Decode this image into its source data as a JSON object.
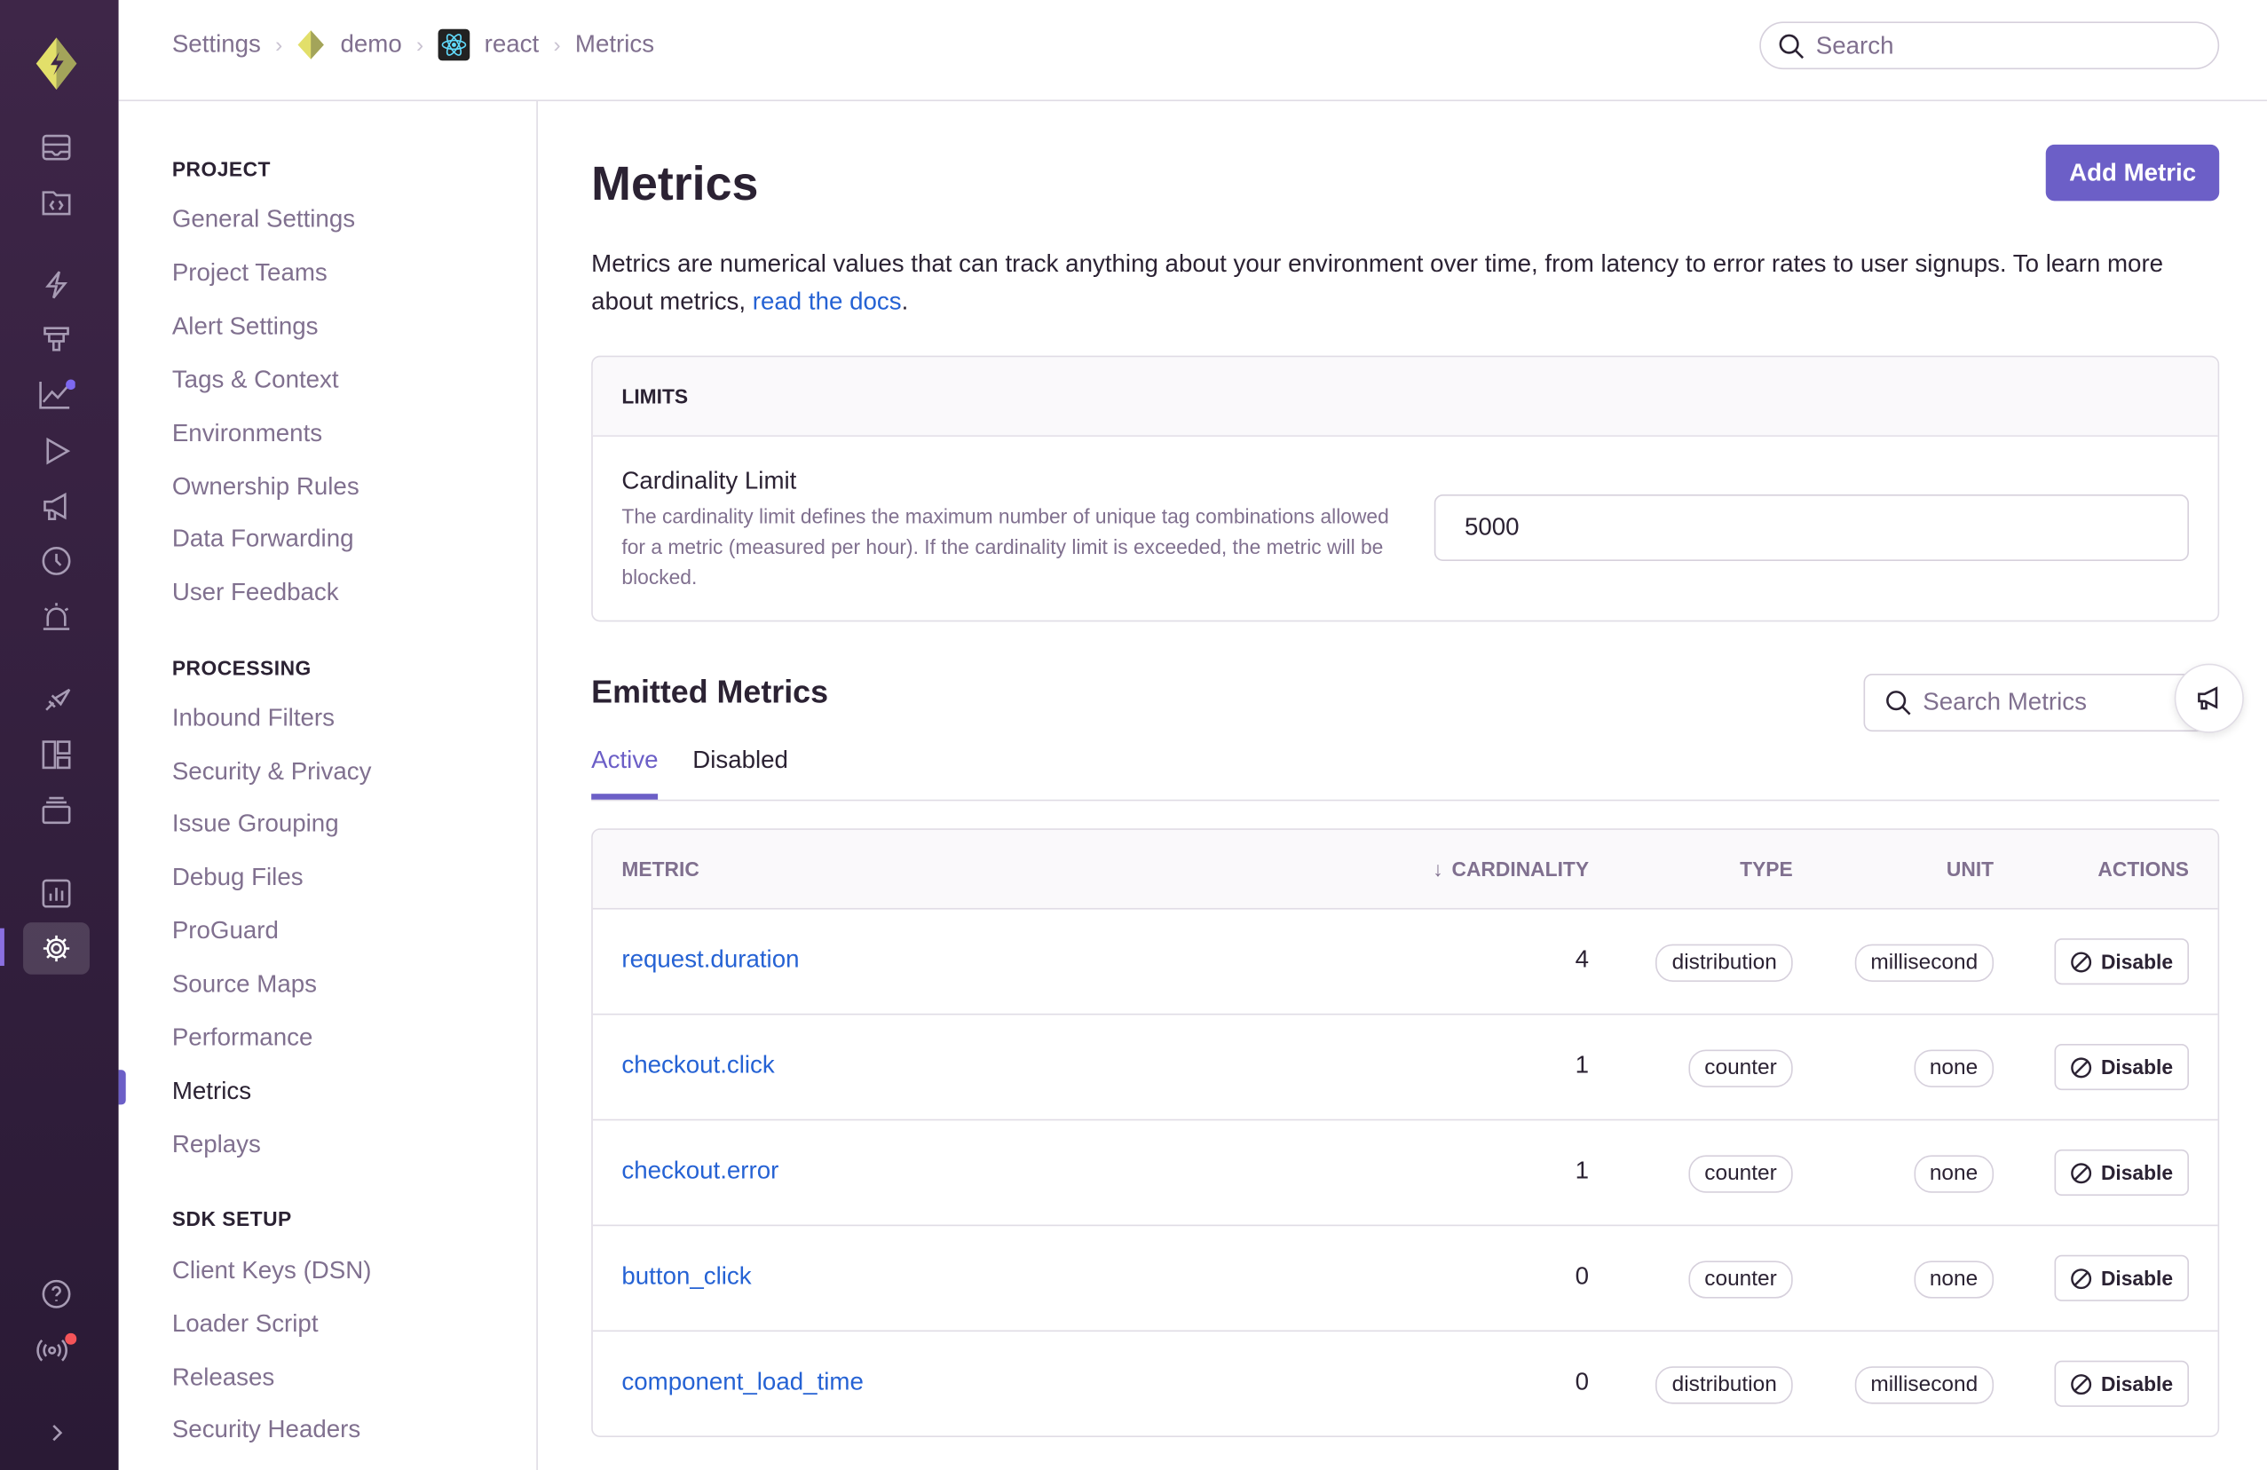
{
  "breadcrumbs": [
    "Settings",
    "demo",
    "react",
    "Metrics"
  ],
  "search": {
    "placeholder": "Search"
  },
  "nav": {
    "sections": [
      {
        "title": "PROJECT",
        "items": [
          "General Settings",
          "Project Teams",
          "Alert Settings",
          "Tags & Context",
          "Environments",
          "Ownership Rules",
          "Data Forwarding",
          "User Feedback"
        ]
      },
      {
        "title": "PROCESSING",
        "items": [
          "Inbound Filters",
          "Security & Privacy",
          "Issue Grouping",
          "Debug Files",
          "ProGuard",
          "Source Maps",
          "Performance",
          "Metrics",
          "Replays"
        ]
      },
      {
        "title": "SDK SETUP",
        "items": [
          "Client Keys (DSN)",
          "Loader Script",
          "Releases",
          "Security Headers"
        ]
      }
    ],
    "current": "Metrics"
  },
  "page": {
    "title": "Metrics",
    "add_label": "Add Metric",
    "desc": "Metrics are numerical values that can track anything about your environment over time, from latency to error rates to user signups. To learn more about metrics, ",
    "docs_link": "read the docs",
    "desc_end": "."
  },
  "limits": {
    "header": "LIMITS",
    "label": "Cardinality Limit",
    "help": "The cardinality limit defines the maximum number of unique tag combinations allowed for a metric (measured per hour). If the cardinality limit is exceeded, the metric will be blocked.",
    "value": "5000"
  },
  "emitted": {
    "title": "Emitted Metrics",
    "search_placeholder": "Search Metrics",
    "tabs": [
      "Active",
      "Disabled"
    ],
    "columns": [
      "METRIC",
      "CARDINALITY",
      "TYPE",
      "UNIT",
      "ACTIONS"
    ],
    "rows": [
      {
        "name": "request.duration",
        "cardinality": "4",
        "type": "distribution",
        "unit": "millisecond",
        "action": "Disable"
      },
      {
        "name": "checkout.click",
        "cardinality": "1",
        "type": "counter",
        "unit": "none",
        "action": "Disable"
      },
      {
        "name": "checkout.error",
        "cardinality": "1",
        "type": "counter",
        "unit": "none",
        "action": "Disable"
      },
      {
        "name": "button_click",
        "cardinality": "0",
        "type": "counter",
        "unit": "none",
        "action": "Disable"
      },
      {
        "name": "component_load_time",
        "cardinality": "0",
        "type": "distribution",
        "unit": "millisecond",
        "action": "Disable"
      }
    ]
  },
  "colors": {
    "accent": "#6c5fc7",
    "link": "#2562d4",
    "rail": "#3e2648"
  }
}
